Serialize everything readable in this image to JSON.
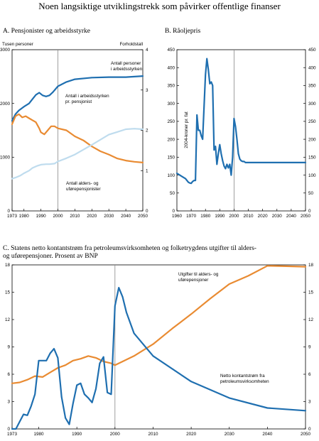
{
  "figure": {
    "title": "Noen langsiktige utviklingstrekk som påvirker offentlige finanser"
  },
  "colors": {
    "dark_blue": "#1f6fb0",
    "light_blue": "#bfdcee",
    "orange": "#e98b32",
    "vline": "#888888"
  },
  "chart_data": [
    {
      "id": "A",
      "type": "line",
      "title": "A.    Pensjonister og arbeidsstyrke",
      "y_left_label": "Tusen personer",
      "y_right_label": "Forholdstall",
      "y_right_axis_label": "",
      "xlim": [
        1973,
        2050
      ],
      "ylim": [
        0,
        3000
      ],
      "ylim_right": [
        0,
        4
      ],
      "x_ticks": [
        1973,
        1980,
        1990,
        2000,
        2010,
        2020,
        2030,
        2040,
        2050
      ],
      "y_ticks": [
        "0",
        "1000",
        "2000",
        "3000"
      ],
      "y_right_ticks": [
        "0",
        "1",
        "2",
        "3",
        "4"
      ],
      "reference_line_x": 2000,
      "series": [
        {
          "name": "Antall personer i arbeidsstyrken",
          "axis": "left",
          "color": "#1f6fb0",
          "x": [
            1973,
            1975,
            1977,
            1980,
            1983,
            1985,
            1987,
            1989,
            1991,
            1993,
            1995,
            1997,
            2000,
            2005,
            2010,
            2020,
            2030,
            2040,
            2050
          ],
          "y": [
            1680,
            1800,
            1870,
            1940,
            2000,
            2080,
            2160,
            2200,
            2150,
            2130,
            2150,
            2210,
            2320,
            2400,
            2450,
            2480,
            2490,
            2490,
            2510
          ]
        },
        {
          "name": "Antall i arbeidsstyrken pr. pensjonist",
          "axis": "right",
          "color": "#e98b32",
          "x": [
            1973,
            1975,
            1977,
            1979,
            1981,
            1983,
            1985,
            1987,
            1989,
            1990,
            1992,
            1994,
            1996,
            1998,
            2000,
            2005,
            2010,
            2015,
            2020,
            2025,
            2030,
            2035,
            2040,
            2045,
            2050
          ],
          "y": [
            2.15,
            2.35,
            2.4,
            2.32,
            2.35,
            2.3,
            2.25,
            2.2,
            2.05,
            1.95,
            1.9,
            2.0,
            2.1,
            2.1,
            2.05,
            2.0,
            1.85,
            1.75,
            1.6,
            1.48,
            1.4,
            1.3,
            1.25,
            1.22,
            1.2
          ]
        },
        {
          "name": "Antall alders- og uførepensjonister",
          "axis": "left",
          "color": "#bfdcee",
          "x": [
            1973,
            1975,
            1978,
            1980,
            1983,
            1985,
            1988,
            1990,
            1993,
            1995,
            1998,
            2000,
            2005,
            2010,
            2020,
            2030,
            2035,
            2040,
            2045,
            2050
          ],
          "y": [
            600,
            620,
            660,
            700,
            750,
            800,
            840,
            860,
            870,
            870,
            880,
            920,
            980,
            1050,
            1230,
            1420,
            1470,
            1520,
            1530,
            1520
          ]
        }
      ],
      "annotations": [
        {
          "lines": [
            "Antall personer",
            "i arbeidsstyrken"
          ]
        },
        {
          "lines": [
            "Antall i arbeidsstyrken",
            "pr. pensjonist"
          ]
        },
        {
          "lines": [
            "Antall alders- og",
            "uførepensjonister"
          ]
        }
      ]
    },
    {
      "id": "B",
      "type": "line",
      "title": "B.    Råoljepris",
      "y_left_label": "2004-kroner pr. fat",
      "xlim": [
        1960,
        2050
      ],
      "ylim": [
        0,
        450
      ],
      "x_ticks": [
        1960,
        1970,
        1980,
        1990,
        2000,
        2010,
        2020,
        2030,
        2040,
        2050
      ],
      "y_ticks": [
        "0",
        "50",
        "100",
        "150",
        "200",
        "250",
        "300",
        "350",
        "400",
        "450"
      ],
      "reference_line_x": 2000,
      "series": [
        {
          "name": "Råoljepris",
          "color": "#1f6fb0",
          "x": [
            1960,
            1962,
            1964,
            1966,
            1968,
            1969,
            1970,
            1971,
            1972,
            1973,
            1974,
            1975,
            1976,
            1977,
            1978,
            1979,
            1980,
            1981,
            1982,
            1983,
            1984,
            1985,
            1986,
            1987,
            1988,
            1989,
            1990,
            1991,
            1992,
            1993,
            1994,
            1995,
            1996,
            1997,
            1998,
            1999,
            2000,
            2001,
            2002,
            2003,
            2004,
            2005,
            2006,
            2007,
            2008,
            2050
          ],
          "y": [
            105,
            100,
            95,
            90,
            80,
            78,
            77,
            82,
            85,
            85,
            268,
            225,
            225,
            210,
            200,
            290,
            380,
            425,
            395,
            355,
            360,
            350,
            170,
            180,
            130,
            160,
            185,
            160,
            140,
            125,
            118,
            130,
            120,
            130,
            100,
            150,
            258,
            235,
            200,
            160,
            145,
            140,
            138,
            138,
            135,
            135
          ]
        }
      ]
    },
    {
      "id": "C",
      "type": "line",
      "title": "C.    Statens netto kontantstrøm fra petroleumsvirksomheten og folketrygdens utgifter til alders- og uførepensjoner. Prosent av BNP",
      "xlim": [
        1973,
        2050
      ],
      "ylim": [
        0,
        18
      ],
      "x_ticks": [
        1973,
        1980,
        1990,
        2000,
        2010,
        2020,
        2030,
        2040,
        2050
      ],
      "y_ticks": [
        "0",
        "3",
        "6",
        "9",
        "12",
        "15",
        "18"
      ],
      "reference_line_x": 2000,
      "series": [
        {
          "name": "Utgifter til alders- og uførepensjoner",
          "color": "#e98b32",
          "x": [
            1973,
            1975,
            1977,
            1979,
            1981,
            1983,
            1985,
            1987,
            1989,
            1991,
            1993,
            1995,
            1997,
            1999,
            2000,
            2005,
            2010,
            2015,
            2020,
            2025,
            2030,
            2035,
            2040,
            2045,
            2050
          ],
          "y": [
            5.0,
            5.1,
            5.4,
            5.8,
            5.7,
            6.2,
            6.7,
            7.0,
            7.5,
            7.7,
            8.0,
            7.8,
            7.4,
            7.2,
            7.0,
            8.0,
            9.3,
            11.0,
            12.6,
            14.3,
            15.9,
            16.8,
            17.9,
            17.85,
            17.8
          ]
        },
        {
          "name": "Netto kontantstrøm fra petroleumsvirksomheten",
          "color": "#1f6fb0",
          "x": [
            1973,
            1974,
            1975,
            1976,
            1977,
            1978,
            1979,
            1980,
            1982,
            1983,
            1984,
            1985,
            1986,
            1987,
            1988,
            1989,
            1990,
            1991,
            1992,
            1993,
            1994,
            1995,
            1996,
            1997,
            1998,
            1999,
            2000,
            2001,
            2002,
            2003,
            2005,
            2010,
            2020,
            2030,
            2040,
            2050
          ],
          "y": [
            0,
            0,
            0.8,
            1.6,
            1.5,
            2.5,
            3.8,
            7.5,
            7.5,
            8.3,
            8.8,
            7.8,
            3.5,
            1.2,
            0.5,
            2.8,
            4.8,
            5.0,
            3.8,
            3.4,
            2.9,
            4.4,
            7.2,
            7.9,
            4.0,
            3.8,
            13.5,
            15.5,
            14.5,
            12.8,
            10.5,
            8.0,
            5.2,
            3.4,
            2.3,
            2.0
          ]
        }
      ],
      "annotations": [
        {
          "lines": [
            "Utgifter til alders- og",
            "uførepensjoner"
          ]
        },
        {
          "lines": [
            "Netto kontantstrøm fra",
            "petroleumsvirksomheten"
          ]
        }
      ]
    }
  ]
}
